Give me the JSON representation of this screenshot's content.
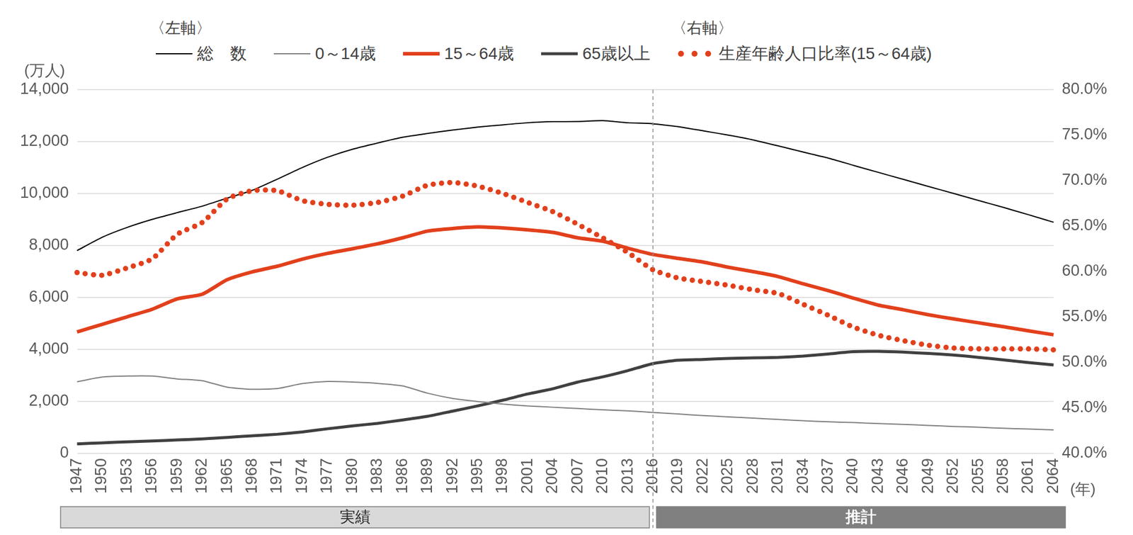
{
  "chart_data": {
    "type": "line",
    "categories": [
      1947,
      1950,
      1953,
      1956,
      1959,
      1962,
      1965,
      1968,
      1971,
      1974,
      1977,
      1980,
      1983,
      1986,
      1989,
      1992,
      1995,
      1998,
      2001,
      2004,
      2007,
      2010,
      2013,
      2016,
      2019,
      2022,
      2025,
      2028,
      2031,
      2034,
      2037,
      2040,
      2043,
      2046,
      2049,
      2052,
      2055,
      2058,
      2061,
      2064
    ],
    "series": [
      {
        "name": "総　数",
        "color": "#000000",
        "line_style": "solid",
        "values": [
          7810,
          8320,
          8700,
          9010,
          9270,
          9520,
          9830,
          10130,
          10560,
          11010,
          11400,
          11710,
          11950,
          12170,
          12320,
          12450,
          12560,
          12650,
          12730,
          12770,
          12780,
          12810,
          12730,
          12690,
          12580,
          12420,
          12254,
          12070,
          11840,
          11600,
          11370,
          11092,
          10820,
          10550,
          10280,
          10010,
          9740,
          9470,
          9190,
          8900
        ]
      },
      {
        "name": "0～14歳",
        "color": "#808080",
        "line_style": "solid",
        "values": [
          2760,
          2940,
          2980,
          2980,
          2870,
          2800,
          2550,
          2470,
          2500,
          2690,
          2770,
          2750,
          2700,
          2600,
          2320,
          2120,
          2000,
          1900,
          1830,
          1780,
          1730,
          1680,
          1640,
          1580,
          1520,
          1460,
          1410,
          1360,
          1310,
          1260,
          1220,
          1190,
          1150,
          1120,
          1080,
          1040,
          1010,
          970,
          940,
          910
        ]
      },
      {
        "name": "15～64歳",
        "color": "#e2401c",
        "line_style": "solid",
        "values": [
          4680,
          4970,
          5260,
          5550,
          5950,
          6130,
          6690,
          6990,
          7210,
          7480,
          7700,
          7880,
          8070,
          8300,
          8560,
          8660,
          8720,
          8680,
          8610,
          8510,
          8300,
          8170,
          7900,
          7660,
          7510,
          7370,
          7170,
          7000,
          6810,
          6530,
          6270,
          5980,
          5710,
          5530,
          5340,
          5180,
          5030,
          4880,
          4720,
          4570
        ]
      },
      {
        "name": "65歳以上",
        "color": "#404040",
        "line_style": "solid",
        "values": [
          370,
          410,
          450,
          480,
          520,
          560,
          620,
          680,
          740,
          830,
          950,
          1060,
          1160,
          1290,
          1430,
          1630,
          1830,
          2050,
          2290,
          2490,
          2750,
          2950,
          3190,
          3460,
          3590,
          3620,
          3660,
          3680,
          3700,
          3750,
          3830,
          3920,
          3930,
          3900,
          3850,
          3790,
          3700,
          3600,
          3500,
          3410
        ]
      },
      {
        "name": "生産年齢人口比率(15～64歳)",
        "color": "#e2401c",
        "line_style": "dotted",
        "axis": "y2",
        "values": [
          59.9,
          59.6,
          60.4,
          61.4,
          64.1,
          65.4,
          68.0,
          68.9,
          68.9,
          67.8,
          67.4,
          67.3,
          67.6,
          68.3,
          69.5,
          69.8,
          69.4,
          68.6,
          67.6,
          66.6,
          65.2,
          63.7,
          62.1,
          60.2,
          59.3,
          58.9,
          58.5,
          58.0,
          57.6,
          56.4,
          55.2,
          53.9,
          53.0,
          52.4,
          51.9,
          51.6,
          51.5,
          51.5,
          51.5,
          51.4
        ]
      }
    ],
    "ylim": [
      0,
      14000
    ],
    "yticks": [
      0,
      {
        "value": 2000,
        "label": "2,000"
      },
      {
        "value": 4000,
        "label": "4,000"
      },
      {
        "value": 6000,
        "label": "6,000"
      },
      {
        "value": 8000,
        "label": "8,000"
      },
      {
        "value": 10000,
        "label": "10,000"
      },
      {
        "value": 12000,
        "label": "12,000"
      },
      {
        "value": 14000,
        "label": "14,000"
      }
    ],
    "y2lim": [
      40,
      80
    ],
    "y2ticks": [
      {
        "value": 40,
        "label": "40.0%"
      },
      {
        "value": 45,
        "label": "45.0%"
      },
      {
        "value": 50,
        "label": "50.0%"
      },
      {
        "value": 55,
        "label": "55.0%"
      },
      {
        "value": 60,
        "label": "60.0%"
      },
      {
        "value": 65,
        "label": "65.0%"
      },
      {
        "value": 70,
        "label": "70.0%"
      },
      {
        "value": 75,
        "label": "75.0%"
      },
      {
        "value": 80,
        "label": "80.0%"
      }
    ],
    "y_label": "(万人)",
    "x_label": "(年)",
    "legend_axis_labels": {
      "y": "〈左軸〉",
      "y2": "〈右軸〉"
    },
    "periods": [
      {
        "label": "実績",
        "from": 1947,
        "to": 2016
      },
      {
        "label": "推計",
        "from": 2016,
        "to": 2064
      }
    ],
    "grid": true,
    "legend": "top"
  }
}
